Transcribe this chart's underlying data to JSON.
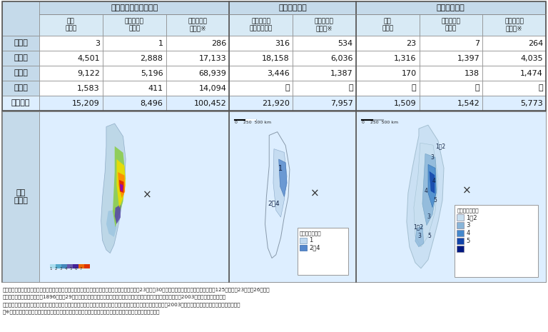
{
  "header_bg": "#c5daea",
  "header_bg2": "#d8eaf5",
  "left_label_bg": "#c5daea",
  "map_bg": "#ddeeff",
  "total_row_bg": "#ddeeff",
  "white": "#ffffff",
  "border_dark": "#888888",
  "border_light": "#aaaaaa",
  "section1": "東北地方太平洋沖地震",
  "section2": "明治三陸地震",
  "section3": "昭和三陸地震",
  "col_header_labels": [
    "死者\n（名）",
    "行方不明者\n（名）",
    "家屋被害数\n（戸）",
    "死者・行方\n不明者（名）",
    "家屋被害数\n（戸）",
    "死者\n（名）",
    "行方不明者\n（名）",
    "家屋被害数\n（棟）"
  ],
  "row_labels": [
    "青森県",
    "岩手県",
    "宮城県",
    "福島県",
    "４県合計"
  ],
  "data": [
    [
      "3",
      "1",
      "286",
      "316",
      "534",
      "23",
      "7",
      "264"
    ],
    [
      "4,501",
      "2,888",
      "17,133",
      "18,158",
      "6,036",
      "1,316",
      "1,397",
      "4,035"
    ],
    [
      "9,122",
      "5,196",
      "68,939",
      "3,446",
      "1,387",
      "170",
      "138",
      "1,474"
    ],
    [
      "1,583",
      "411",
      "14,094",
      "－",
      "－",
      "－",
      "－",
      "－"
    ],
    [
      "15,209",
      "8,496",
      "100,452",
      "21,920",
      "7,957",
      "1,509",
      "1,542",
      "5,773"
    ]
  ],
  "map_label": "震度\n分布図",
  "footer_lines": [
    "（出典）・死者，行方不明者，家屋被害数：東北地方太平洋沖地震：緊急災害対策本部資料（平成23年５月30日）及び消防庁災害対策本部資料（第125版，平成23年５月26日），",
    "　　　　　明治三陸地震：「1896（明治29）年「岩手県統計書」，昭和三陸地震：東京大学出版社：「日本被害地震総覧2003年初版，宇佐見龍夫」",
    "　　　　・震度分布図：東北地方太平洋沖地震：「気象庁資料」，明治三陸地震，昭和三陸地震：「日本被害地震総覧2003年初版，宇佐見龍夫」を参考に内閣府作成",
    "　※数値は各資料に記載されている家屋被害の全壊，半壊，流失家屋数，全焼，半焼の被害数の合計値を記載。"
  ]
}
